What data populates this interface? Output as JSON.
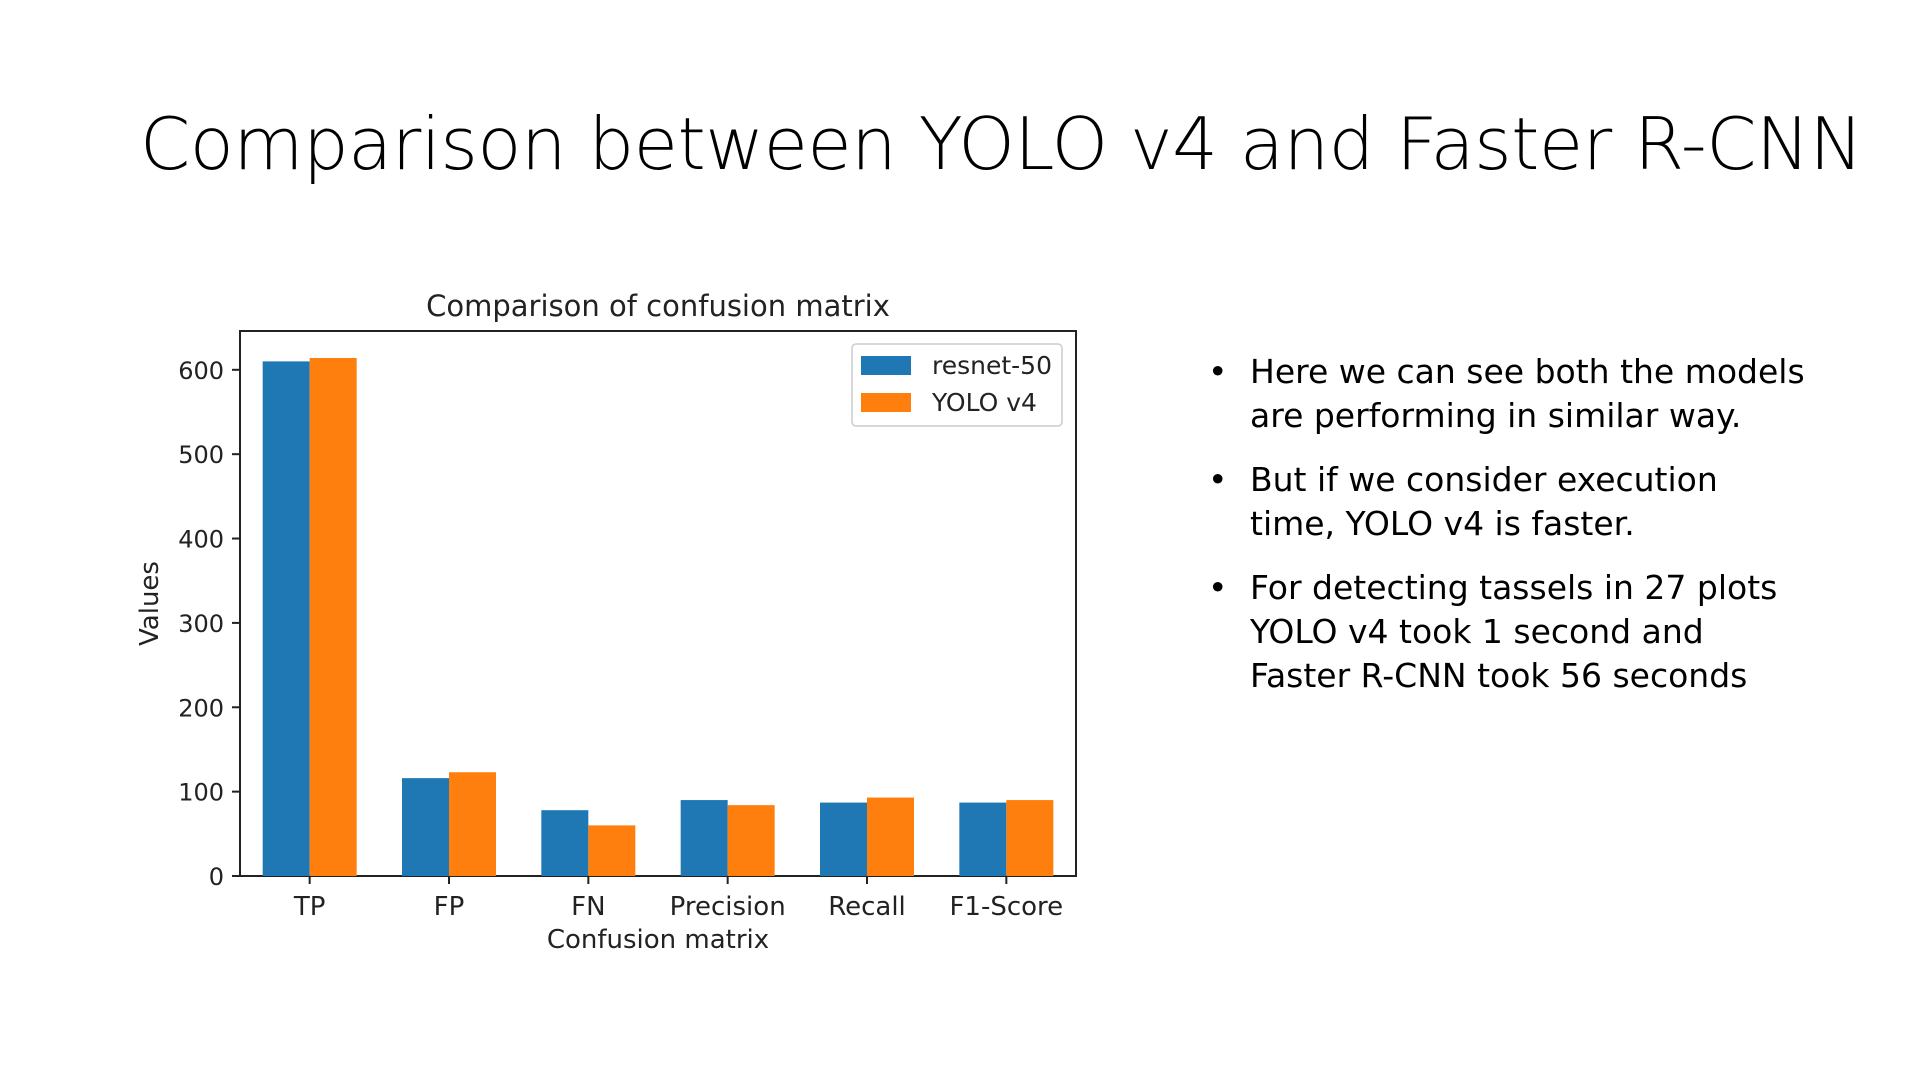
{
  "slide": {
    "title": "Comparison between YOLO v4 and Faster R-CNN",
    "bullets": [
      "Here we can see both the models are performing in similar way.",
      "But if we consider execution time, YOLO v4 is faster.",
      "For detecting tassels in 27 plots YOLO v4 took 1 second and Faster R-CNN took 56 seconds"
    ],
    "bullet_symbol": "•"
  },
  "chart_data": {
    "type": "bar",
    "title": "Comparison of confusion matrix",
    "xlabel": "Confusion matrix",
    "ylabel": "Values",
    "categories": [
      "TP",
      "FP",
      "FN",
      "Precision",
      "Recall",
      "F1-Score"
    ],
    "series": [
      {
        "name": "resnet-50",
        "color": "#1f77b4",
        "values": [
          610,
          116,
          78,
          90,
          87,
          87
        ]
      },
      {
        "name": "YOLO v4",
        "color": "#ff7f0e",
        "values": [
          614,
          123,
          60,
          84,
          93,
          90
        ]
      }
    ],
    "ylim": [
      0,
      646
    ],
    "yticks": [
      0,
      100,
      200,
      300,
      400,
      500,
      600
    ],
    "legend_position": "top-right",
    "grid": false
  }
}
